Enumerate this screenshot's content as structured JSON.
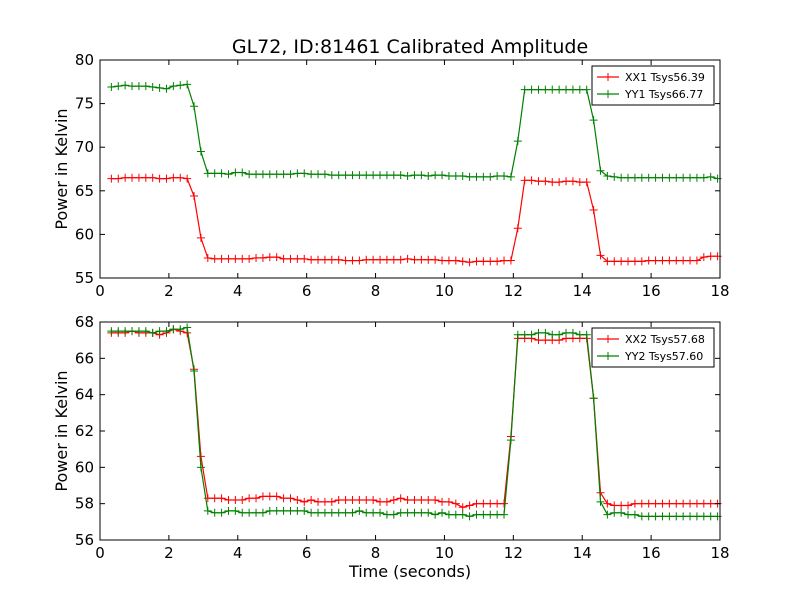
{
  "colors": {
    "red": "#ff0000",
    "green": "#008000"
  },
  "chart_data": [
    {
      "type": "line",
      "title": "GL72, ID:81461 Calibrated Amplitude",
      "xlabel": "",
      "ylabel": "Power in Kelvin",
      "xlim": [
        0,
        18
      ],
      "ylim": [
        55,
        80
      ],
      "xticks": [
        0,
        2,
        4,
        6,
        8,
        10,
        12,
        14,
        16,
        18
      ],
      "yticks": [
        55,
        60,
        65,
        70,
        75,
        80
      ],
      "legend_position": "top-right",
      "x": [
        0.33,
        0.53,
        0.73,
        0.93,
        1.13,
        1.33,
        1.53,
        1.73,
        1.93,
        2.13,
        2.33,
        2.53,
        2.73,
        2.93,
        3.13,
        3.33,
        3.53,
        3.73,
        3.93,
        4.13,
        4.33,
        4.53,
        4.73,
        4.93,
        5.13,
        5.33,
        5.53,
        5.73,
        5.93,
        6.13,
        6.33,
        6.53,
        6.73,
        6.93,
        7.13,
        7.33,
        7.53,
        7.73,
        7.93,
        8.13,
        8.33,
        8.53,
        8.73,
        8.93,
        9.13,
        9.33,
        9.53,
        9.73,
        9.93,
        10.13,
        10.33,
        10.53,
        10.73,
        10.93,
        11.13,
        11.33,
        11.53,
        11.73,
        11.93,
        12.13,
        12.33,
        12.53,
        12.73,
        12.93,
        13.13,
        13.33,
        13.53,
        13.73,
        13.93,
        14.13,
        14.33,
        14.53,
        14.73,
        14.93,
        15.13,
        15.33,
        15.53,
        15.73,
        15.93,
        16.13,
        16.33,
        16.53,
        16.73,
        16.93,
        17.13,
        17.33,
        17.53,
        17.73,
        17.93
      ],
      "series": [
        {
          "name": "XX1 Tsys56.39",
          "color": "#ff0000",
          "values": [
            66.4,
            66.4,
            66.5,
            66.5,
            66.5,
            66.5,
            66.5,
            66.4,
            66.4,
            66.5,
            66.5,
            66.4,
            64.4,
            59.6,
            57.3,
            57.2,
            57.2,
            57.2,
            57.2,
            57.2,
            57.2,
            57.3,
            57.3,
            57.4,
            57.4,
            57.2,
            57.2,
            57.2,
            57.2,
            57.1,
            57.1,
            57.1,
            57.1,
            57.1,
            57.0,
            57.0,
            57.0,
            57.1,
            57.1,
            57.1,
            57.1,
            57.1,
            57.1,
            57.2,
            57.1,
            57.1,
            57.1,
            57.1,
            57.0,
            57.0,
            57.0,
            56.9,
            56.8,
            56.9,
            56.9,
            56.9,
            56.9,
            57.0,
            57.0,
            60.7,
            66.2,
            66.2,
            66.1,
            66.1,
            66.0,
            66.0,
            66.1,
            66.1,
            66.0,
            66.0,
            62.8,
            57.6,
            56.9,
            56.9,
            56.9,
            56.9,
            56.9,
            56.9,
            57.0,
            57.0,
            57.0,
            57.0,
            57.0,
            57.0,
            57.0,
            57.0,
            57.4,
            57.5,
            57.5
          ]
        },
        {
          "name": "YY1 Tsys66.77",
          "color": "#008000",
          "values": [
            76.9,
            77.0,
            77.1,
            77.0,
            77.0,
            77.0,
            76.9,
            76.8,
            76.7,
            77.0,
            77.1,
            77.2,
            74.7,
            69.5,
            67.0,
            67.0,
            67.0,
            66.9,
            67.1,
            67.1,
            66.9,
            66.9,
            66.9,
            66.9,
            66.9,
            66.9,
            66.9,
            67.0,
            67.0,
            66.9,
            66.9,
            66.9,
            66.8,
            66.8,
            66.8,
            66.8,
            66.8,
            66.8,
            66.8,
            66.8,
            66.8,
            66.8,
            66.8,
            66.7,
            66.8,
            66.8,
            66.7,
            66.8,
            66.8,
            66.7,
            66.7,
            66.7,
            66.6,
            66.6,
            66.6,
            66.6,
            66.7,
            66.7,
            66.6,
            70.7,
            76.6,
            76.6,
            76.6,
            76.6,
            76.6,
            76.6,
            76.6,
            76.6,
            76.6,
            76.6,
            73.1,
            67.3,
            66.7,
            66.6,
            66.5,
            66.5,
            66.5,
            66.5,
            66.5,
            66.5,
            66.5,
            66.5,
            66.5,
            66.5,
            66.5,
            66.5,
            66.5,
            66.6,
            66.4
          ]
        }
      ]
    },
    {
      "type": "line",
      "title": "",
      "xlabel": "Time (seconds)",
      "ylabel": "Power in Kelvin",
      "xlim": [
        0,
        18
      ],
      "ylim": [
        56,
        68
      ],
      "xticks": [
        0,
        2,
        4,
        6,
        8,
        10,
        12,
        14,
        16,
        18
      ],
      "yticks": [
        56,
        58,
        60,
        62,
        64,
        66,
        68
      ],
      "legend_position": "top-right",
      "x": [
        0.33,
        0.53,
        0.73,
        0.93,
        1.13,
        1.33,
        1.53,
        1.73,
        1.93,
        2.13,
        2.33,
        2.53,
        2.73,
        2.93,
        3.13,
        3.33,
        3.53,
        3.73,
        3.93,
        4.13,
        4.33,
        4.53,
        4.73,
        4.93,
        5.13,
        5.33,
        5.53,
        5.73,
        5.93,
        6.13,
        6.33,
        6.53,
        6.73,
        6.93,
        7.13,
        7.33,
        7.53,
        7.73,
        7.93,
        8.13,
        8.33,
        8.53,
        8.73,
        8.93,
        9.13,
        9.33,
        9.53,
        9.73,
        9.93,
        10.13,
        10.33,
        10.53,
        10.73,
        10.93,
        11.13,
        11.33,
        11.53,
        11.73,
        11.93,
        12.13,
        12.33,
        12.53,
        12.73,
        12.93,
        13.13,
        13.33,
        13.53,
        13.73,
        13.93,
        14.13,
        14.33,
        14.53,
        14.73,
        14.93,
        15.13,
        15.33,
        15.53,
        15.73,
        15.93,
        16.13,
        16.33,
        16.53,
        16.73,
        16.93,
        17.13,
        17.33,
        17.53,
        17.73,
        17.93
      ],
      "series": [
        {
          "name": "XX2 Tsys57.68",
          "color": "#ff0000",
          "values": [
            67.4,
            67.4,
            67.4,
            67.5,
            67.4,
            67.4,
            67.4,
            67.3,
            67.4,
            67.6,
            67.5,
            67.4,
            65.4,
            60.6,
            58.3,
            58.3,
            58.3,
            58.2,
            58.2,
            58.2,
            58.3,
            58.3,
            58.4,
            58.4,
            58.4,
            58.3,
            58.3,
            58.2,
            58.1,
            58.2,
            58.1,
            58.1,
            58.1,
            58.2,
            58.2,
            58.2,
            58.2,
            58.2,
            58.2,
            58.1,
            58.1,
            58.2,
            58.3,
            58.2,
            58.2,
            58.2,
            58.2,
            58.2,
            58.1,
            58.1,
            58.0,
            57.8,
            57.9,
            58.0,
            58.0,
            58.0,
            58.0,
            58.0,
            61.7,
            67.1,
            67.1,
            67.1,
            67.0,
            67.0,
            67.0,
            67.0,
            67.1,
            67.1,
            67.1,
            67.1,
            63.8,
            58.6,
            58.0,
            57.9,
            57.9,
            57.9,
            58.0,
            58.0,
            58.0,
            58.0,
            58.0,
            58.0,
            58.0,
            58.0,
            58.0,
            58.0,
            58.0,
            58.0,
            58.0
          ]
        },
        {
          "name": "YY2 Tsys57.60",
          "color": "#008000",
          "values": [
            67.5,
            67.5,
            67.5,
            67.5,
            67.5,
            67.5,
            67.4,
            67.5,
            67.5,
            67.6,
            67.6,
            67.7,
            65.3,
            60.0,
            57.6,
            57.5,
            57.5,
            57.6,
            57.6,
            57.5,
            57.5,
            57.5,
            57.5,
            57.6,
            57.6,
            57.6,
            57.6,
            57.6,
            57.6,
            57.5,
            57.5,
            57.5,
            57.5,
            57.5,
            57.5,
            57.5,
            57.6,
            57.5,
            57.5,
            57.5,
            57.4,
            57.4,
            57.5,
            57.5,
            57.5,
            57.5,
            57.5,
            57.4,
            57.5,
            57.4,
            57.4,
            57.4,
            57.3,
            57.4,
            57.4,
            57.4,
            57.4,
            57.4,
            61.5,
            67.3,
            67.3,
            67.3,
            67.4,
            67.4,
            67.3,
            67.3,
            67.4,
            67.4,
            67.3,
            67.3,
            63.8,
            58.1,
            57.4,
            57.5,
            57.5,
            57.4,
            57.4,
            57.3,
            57.3,
            57.3,
            57.3,
            57.3,
            57.3,
            57.3,
            57.3,
            57.3,
            57.3,
            57.3,
            57.3
          ]
        }
      ]
    }
  ]
}
